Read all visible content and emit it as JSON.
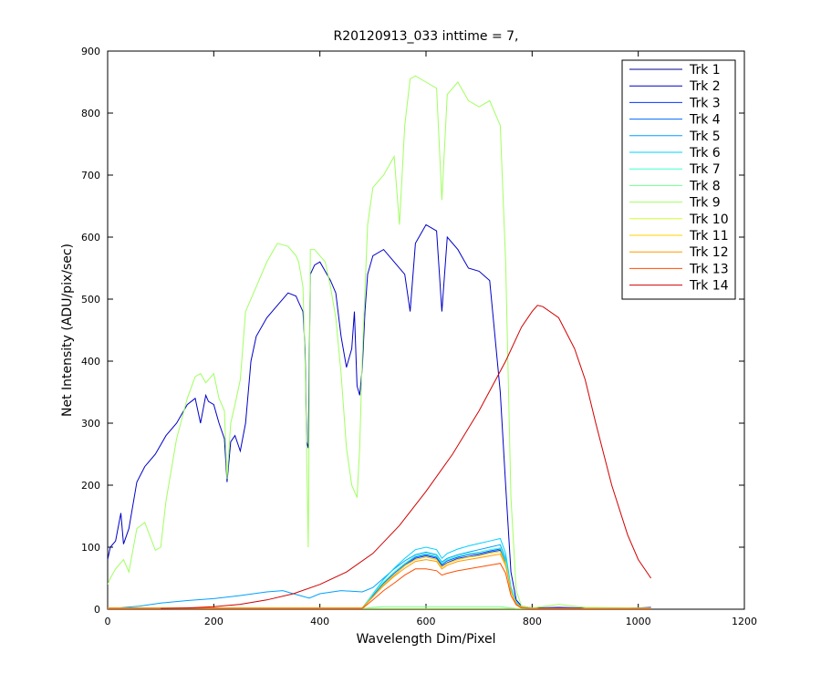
{
  "chart_data": {
    "type": "line",
    "title": "R20120913_033 inttime = 7,",
    "xlabel": "Wavelength Dim/Pixel",
    "ylabel": "Net Intensity (ADU/pix/sec)",
    "xlim": [
      0,
      1200
    ],
    "ylim": [
      0,
      900
    ],
    "xticks": [
      "0",
      "200",
      "400",
      "600",
      "800",
      "1000",
      "1200"
    ],
    "yticks": [
      "0",
      "100",
      "200",
      "300",
      "400",
      "500",
      "600",
      "700",
      "800",
      "900"
    ],
    "grid": false,
    "legend_position": "top-right",
    "series": [
      {
        "name": "Trk 1",
        "color": "#00008f",
        "x": [
          0,
          1024
        ],
        "y": [
          0,
          0
        ]
      },
      {
        "name": "Trk 2",
        "color": "#0000c8",
        "x": [
          0,
          5,
          15,
          25,
          30,
          40,
          55,
          70,
          90,
          110,
          130,
          150,
          165,
          175,
          185,
          190,
          200,
          210,
          220,
          225,
          232,
          240,
          250,
          260,
          270,
          280,
          300,
          320,
          340,
          355,
          360,
          368,
          372,
          375,
          378,
          382,
          390,
          400,
          410,
          420,
          430,
          440,
          450,
          460,
          465,
          470,
          475,
          480,
          485,
          490,
          500,
          520,
          540,
          560,
          570,
          580,
          600,
          620,
          630,
          640,
          660,
          680,
          700,
          720,
          740,
          750,
          760,
          770,
          780,
          800,
          850,
          900,
          1000,
          1024
        ],
        "y": [
          80,
          100,
          110,
          155,
          105,
          130,
          205,
          230,
          250,
          280,
          300,
          330,
          340,
          300,
          345,
          335,
          330,
          300,
          275,
          205,
          270,
          280,
          255,
          300,
          400,
          440,
          470,
          490,
          510,
          505,
          495,
          480,
          420,
          270,
          260,
          540,
          555,
          560,
          545,
          530,
          510,
          440,
          390,
          420,
          480,
          360,
          345,
          390,
          480,
          540,
          570,
          580,
          560,
          540,
          480,
          590,
          620,
          610,
          480,
          600,
          580,
          550,
          545,
          530,
          350,
          200,
          60,
          15,
          5,
          2,
          3,
          2,
          2,
          3
        ]
      },
      {
        "name": "Trk 3",
        "color": "#0034ff",
        "x": [
          0,
          480,
          500,
          520,
          540,
          560,
          580,
          600,
          620,
          630,
          640,
          660,
          680,
          700,
          720,
          740,
          750,
          760,
          770,
          780,
          800,
          1024
        ],
        "y": [
          2,
          2,
          20,
          40,
          55,
          70,
          82,
          86,
          82,
          70,
          75,
          82,
          85,
          88,
          92,
          95,
          75,
          30,
          10,
          3,
          1,
          1
        ]
      },
      {
        "name": "Trk 4",
        "color": "#0068ff",
        "x": [
          0,
          480,
          500,
          520,
          540,
          560,
          580,
          600,
          620,
          630,
          640,
          660,
          680,
          700,
          720,
          740,
          750,
          760,
          770,
          780,
          800,
          1024
        ],
        "y": [
          2,
          2,
          22,
          42,
          58,
          72,
          84,
          88,
          84,
          72,
          78,
          84,
          88,
          90,
          94,
          97,
          77,
          31,
          10,
          3,
          1,
          1
        ]
      },
      {
        "name": "Trk 5",
        "color": "#00a0ff",
        "x": [
          0,
          20,
          60,
          100,
          150,
          200,
          250,
          300,
          330,
          350,
          380,
          400,
          440,
          480,
          500,
          520,
          540,
          560,
          580,
          600,
          620,
          630,
          640,
          660,
          680,
          700,
          720,
          740,
          750,
          760,
          770,
          780,
          800,
          1024
        ],
        "y": [
          2,
          2,
          5,
          10,
          14,
          17,
          22,
          28,
          30,
          25,
          18,
          25,
          30,
          28,
          35,
          50,
          65,
          78,
          88,
          92,
          88,
          76,
          82,
          88,
          92,
          96,
          100,
          104,
          82,
          34,
          11,
          3,
          1,
          1
        ]
      },
      {
        "name": "Trk 6",
        "color": "#00d0ff",
        "x": [
          0,
          480,
          500,
          520,
          540,
          560,
          580,
          600,
          620,
          630,
          640,
          660,
          680,
          700,
          720,
          740,
          750,
          760,
          770,
          780,
          800,
          1024
        ],
        "y": [
          2,
          2,
          25,
          48,
          66,
          82,
          96,
          100,
          96,
          82,
          90,
          97,
          102,
          106,
          110,
          114,
          90,
          36,
          12,
          3,
          1,
          1
        ]
      },
      {
        "name": "Trk 7",
        "color": "#40ffd0",
        "x": [
          0,
          480,
          500,
          520,
          540,
          560,
          580,
          600,
          620,
          630,
          640,
          660,
          680,
          700,
          720,
          740,
          750,
          760,
          770,
          780,
          800,
          1024
        ],
        "y": [
          2,
          2,
          24,
          44,
          60,
          74,
          86,
          90,
          86,
          74,
          80,
          86,
          90,
          92,
          96,
          99,
          79,
          32,
          10,
          3,
          1,
          1
        ]
      },
      {
        "name": "Trk 8",
        "color": "#70ff90",
        "x": [
          0,
          480,
          500,
          520,
          540,
          560,
          580,
          600,
          620,
          630,
          640,
          660,
          680,
          700,
          720,
          740,
          750,
          760,
          770,
          780,
          800,
          1024
        ],
        "y": [
          1,
          1,
          3,
          4,
          4,
          4,
          4,
          4,
          4,
          4,
          4,
          4,
          4,
          4,
          4,
          4,
          3,
          2,
          1,
          1,
          1,
          1
        ]
      },
      {
        "name": "Trk 9",
        "color": "#a0ff60",
        "x": [
          0,
          5,
          15,
          30,
          40,
          55,
          70,
          90,
          100,
          110,
          130,
          150,
          165,
          175,
          185,
          200,
          210,
          220,
          225,
          232,
          240,
          250,
          260,
          280,
          300,
          320,
          340,
          355,
          360,
          368,
          372,
          375,
          378,
          382,
          390,
          400,
          410,
          420,
          430,
          440,
          450,
          460,
          470,
          475,
          480,
          490,
          500,
          520,
          540,
          550,
          560,
          570,
          580,
          600,
          620,
          630,
          640,
          660,
          680,
          700,
          720,
          740,
          750,
          760,
          770,
          780,
          800,
          850,
          900,
          1000,
          1024
        ],
        "y": [
          40,
          50,
          65,
          80,
          60,
          130,
          140,
          95,
          100,
          175,
          275,
          340,
          375,
          380,
          365,
          380,
          340,
          320,
          210,
          300,
          330,
          370,
          480,
          520,
          560,
          590,
          585,
          570,
          560,
          520,
          400,
          260,
          100,
          580,
          580,
          570,
          560,
          520,
          470,
          380,
          260,
          200,
          180,
          260,
          410,
          620,
          680,
          700,
          730,
          620,
          780,
          855,
          860,
          850,
          840,
          660,
          830,
          850,
          820,
          810,
          820,
          780,
          560,
          180,
          30,
          5,
          2,
          8,
          3,
          2,
          2
        ]
      },
      {
        "name": "Trk 10",
        "color": "#d0ff30",
        "x": [
          0,
          1024
        ],
        "y": [
          1,
          1
        ]
      },
      {
        "name": "Trk 11",
        "color": "#ffd000",
        "x": [
          0,
          480,
          500,
          520,
          540,
          560,
          580,
          600,
          620,
          630,
          640,
          660,
          680,
          700,
          720,
          740,
          750,
          760,
          770,
          780,
          800,
          1024
        ],
        "y": [
          2,
          2,
          20,
          40,
          55,
          70,
          80,
          84,
          80,
          68,
          74,
          80,
          84,
          86,
          90,
          93,
          73,
          29,
          9,
          3,
          1,
          1
        ]
      },
      {
        "name": "Trk 12",
        "color": "#ff9a00",
        "x": [
          0,
          480,
          500,
          520,
          540,
          560,
          580,
          600,
          620,
          630,
          640,
          660,
          680,
          700,
          720,
          740,
          750,
          760,
          770,
          780,
          800,
          1024
        ],
        "y": [
          2,
          2,
          20,
          38,
          53,
          66,
          77,
          80,
          77,
          65,
          71,
          77,
          80,
          83,
          86,
          89,
          70,
          28,
          9,
          3,
          1,
          1
        ]
      },
      {
        "name": "Trk 13",
        "color": "#ff4e00",
        "x": [
          0,
          480,
          500,
          520,
          540,
          560,
          580,
          600,
          620,
          630,
          640,
          660,
          680,
          700,
          720,
          740,
          750,
          760,
          770,
          780,
          800,
          1024
        ],
        "y": [
          1,
          1,
          15,
          30,
          42,
          55,
          65,
          65,
          62,
          55,
          58,
          62,
          65,
          68,
          71,
          74,
          58,
          22,
          7,
          2,
          1,
          1
        ]
      },
      {
        "name": "Trk 14",
        "color": "#d00000",
        "x": [
          100,
          150,
          200,
          250,
          300,
          350,
          400,
          450,
          500,
          550,
          600,
          650,
          700,
          750,
          780,
          800,
          810,
          820,
          850,
          880,
          900,
          920,
          950,
          980,
          1000,
          1024
        ],
        "y": [
          1,
          2,
          4,
          8,
          15,
          25,
          40,
          60,
          90,
          135,
          190,
          250,
          320,
          400,
          455,
          480,
          490,
          488,
          470,
          420,
          370,
          300,
          200,
          120,
          80,
          50
        ]
      }
    ]
  }
}
